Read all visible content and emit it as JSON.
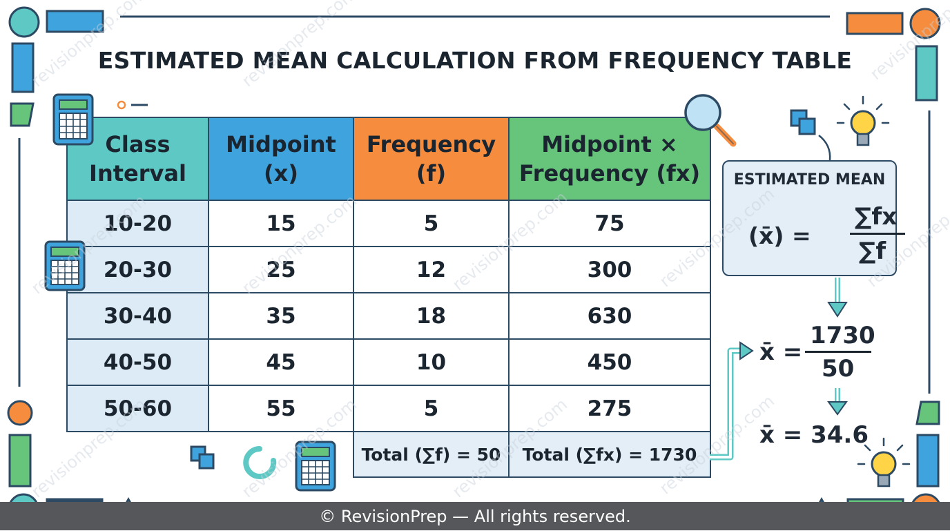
{
  "title": "ESTIMATED MEAN CALCULATION FROM FREQUENCY TABLE",
  "table": {
    "headers": [
      {
        "line1": "Class",
        "line2": "Interval"
      },
      {
        "line1": "Midpoint",
        "line2": "(x)"
      },
      {
        "line1": "Frequency",
        "line2": "(f)"
      },
      {
        "line1": "Midpoint ×",
        "line2": "Frequency (fx)"
      }
    ],
    "rows": [
      [
        "10-20",
        "15",
        "5",
        "75"
      ],
      [
        "20-30",
        "25",
        "12",
        "300"
      ],
      [
        "30-40",
        "35",
        "18",
        "630"
      ],
      [
        "40-50",
        "45",
        "10",
        "450"
      ],
      [
        "50-60",
        "55",
        "5",
        "275"
      ]
    ],
    "total_f": "Total (∑f) = 50",
    "total_fx": "Total (∑fx) = 1730"
  },
  "formula": {
    "title": "ESTIMATED MEAN",
    "lhs": "(x̄) =",
    "numerator": "∑fx",
    "denominator": "∑f"
  },
  "step2": {
    "lhs": "x̄ =",
    "numerator": "1730",
    "denominator": "50"
  },
  "result": "x̄ = 34.6",
  "watermark": "revisionprep.com",
  "footer": "© RevisionPrep — All rights reserved.",
  "colors": {
    "teal": "#5ec9c4",
    "blue": "#3fa3de",
    "orange": "#f68d3e",
    "green": "#67c47b",
    "navy": "#2c4a63",
    "light_blue": "#dcebf6",
    "footer_bg": "#55575a"
  }
}
